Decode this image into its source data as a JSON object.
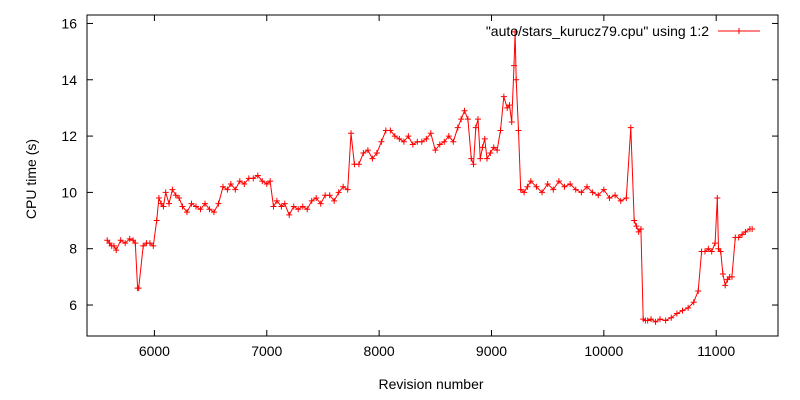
{
  "chart_data": {
    "type": "line",
    "title": "",
    "xlabel": "Revision number",
    "ylabel": "CPU time (s)",
    "xlim": [
      5400,
      11550
    ],
    "ylim": [
      4.9,
      16.3
    ],
    "xticks": [
      6000,
      7000,
      8000,
      9000,
      10000,
      11000
    ],
    "yticks": [
      6,
      8,
      10,
      12,
      14,
      16
    ],
    "grid": false,
    "legend_position": "top-right",
    "marker": "plus",
    "series": [
      {
        "name": "\"auto/stars_kurucz79.cpu\" using 1:2",
        "color": "#ff0000",
        "x": [
          5580,
          5600,
          5620,
          5640,
          5660,
          5700,
          5740,
          5780,
          5810,
          5830,
          5850,
          5860,
          5900,
          5930,
          5960,
          5990,
          6020,
          6040,
          6060,
          6080,
          6100,
          6130,
          6160,
          6190,
          6220,
          6250,
          6290,
          6330,
          6370,
          6410,
          6450,
          6490,
          6530,
          6570,
          6610,
          6650,
          6680,
          6720,
          6760,
          6800,
          6840,
          6880,
          6920,
          6960,
          7000,
          7030,
          7060,
          7090,
          7130,
          7160,
          7200,
          7240,
          7280,
          7320,
          7360,
          7400,
          7440,
          7480,
          7520,
          7560,
          7600,
          7640,
          7680,
          7720,
          7750,
          7780,
          7820,
          7860,
          7900,
          7940,
          7980,
          8020,
          8060,
          8100,
          8140,
          8180,
          8220,
          8260,
          8300,
          8340,
          8380,
          8420,
          8460,
          8500,
          8540,
          8580,
          8620,
          8660,
          8700,
          8730,
          8760,
          8790,
          8820,
          8840,
          8860,
          8880,
          8900,
          8920,
          8940,
          8960,
          8990,
          9020,
          9050,
          9080,
          9110,
          9140,
          9160,
          9180,
          9200,
          9210,
          9220,
          9240,
          9260,
          9290,
          9320,
          9350,
          9400,
          9450,
          9500,
          9550,
          9600,
          9650,
          9700,
          9750,
          9800,
          9850,
          9900,
          9950,
          10000,
          10050,
          10100,
          10150,
          10200,
          10240,
          10270,
          10290,
          10310,
          10330,
          10350,
          10370,
          10390,
          10420,
          10460,
          10500,
          10550,
          10600,
          10650,
          10700,
          10750,
          10800,
          10840,
          10870,
          10900,
          10930,
          10960,
          10990,
          11010,
          11020,
          11040,
          11060,
          11080,
          11100,
          11120,
          11140,
          11170,
          11200,
          11230,
          11260,
          11300,
          11320
        ],
        "y": [
          8.3,
          8.2,
          8.1,
          8.1,
          7.95,
          8.3,
          8.2,
          8.35,
          8.3,
          8.2,
          6.6,
          6.6,
          8.1,
          8.2,
          8.2,
          8.1,
          9.0,
          9.8,
          9.6,
          9.5,
          10.0,
          9.6,
          10.1,
          9.9,
          9.8,
          9.5,
          9.3,
          9.6,
          9.5,
          9.4,
          9.6,
          9.4,
          9.3,
          9.6,
          10.2,
          10.1,
          10.3,
          10.1,
          10.4,
          10.3,
          10.5,
          10.5,
          10.6,
          10.4,
          10.3,
          10.4,
          9.5,
          9.7,
          9.5,
          9.6,
          9.2,
          9.5,
          9.4,
          9.5,
          9.4,
          9.7,
          9.8,
          9.6,
          9.9,
          9.9,
          9.7,
          10.0,
          10.2,
          10.1,
          12.1,
          11.0,
          11.0,
          11.4,
          11.5,
          11.2,
          11.4,
          11.8,
          12.2,
          12.2,
          12.0,
          11.9,
          11.8,
          12.0,
          11.7,
          11.8,
          11.8,
          11.9,
          12.1,
          11.5,
          11.7,
          11.8,
          12.0,
          11.8,
          12.3,
          12.6,
          12.9,
          12.6,
          11.2,
          11.0,
          12.3,
          12.6,
          11.2,
          11.6,
          11.9,
          11.2,
          11.4,
          11.6,
          11.5,
          12.2,
          13.4,
          13.0,
          13.1,
          12.5,
          14.5,
          15.7,
          14.0,
          12.2,
          10.1,
          10.0,
          10.2,
          10.4,
          10.2,
          10.0,
          10.3,
          10.1,
          10.4,
          10.2,
          10.3,
          10.1,
          10.0,
          10.2,
          10.0,
          9.9,
          10.1,
          9.8,
          9.9,
          9.7,
          9.8,
          12.3,
          9.0,
          8.8,
          8.6,
          8.7,
          5.5,
          5.45,
          5.45,
          5.5,
          5.4,
          5.5,
          5.45,
          5.55,
          5.7,
          5.8,
          5.9,
          6.1,
          6.5,
          7.9,
          7.9,
          8.0,
          7.9,
          8.2,
          9.8,
          8.0,
          7.9,
          7.1,
          6.7,
          6.9,
          7.0,
          7.0,
          8.4,
          8.4,
          8.5,
          8.6,
          8.7,
          8.7
        ]
      }
    ]
  }
}
